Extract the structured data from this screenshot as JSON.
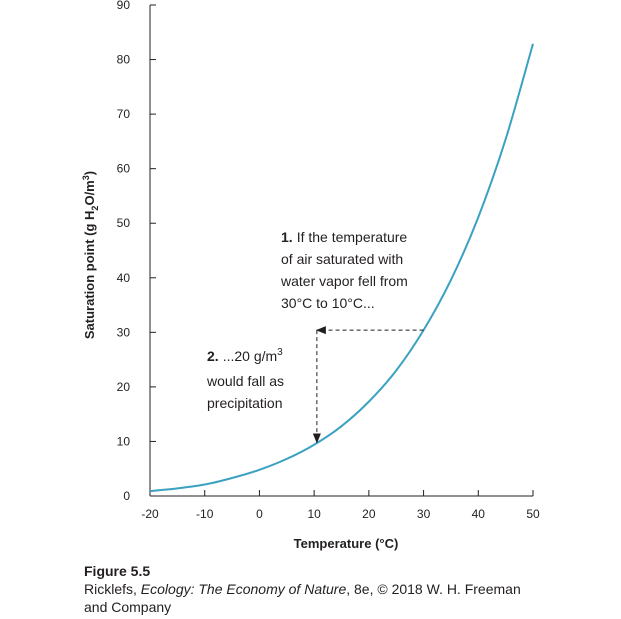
{
  "chart_data": {
    "type": "line",
    "xlabel": "Temperature (°C)",
    "ylabel_parts": [
      "Saturation point (g H",
      "2",
      "O/m",
      "3",
      ")"
    ],
    "xlim": [
      -20,
      50
    ],
    "ylim": [
      0,
      90
    ],
    "x_ticks": [
      -20,
      -10,
      0,
      10,
      20,
      30,
      40,
      50
    ],
    "y_ticks": [
      0,
      10,
      20,
      30,
      40,
      50,
      60,
      70,
      80,
      90
    ],
    "grid": false,
    "line_color": "#3aa1c1",
    "series": [
      {
        "x": [
          -20,
          -15,
          -10,
          -5,
          0,
          5,
          10,
          15,
          20,
          25,
          30,
          35,
          40,
          45,
          50
        ],
        "y": [
          0.9,
          1.4,
          2.1,
          3.3,
          4.8,
          6.8,
          9.4,
          12.8,
          17.3,
          23.0,
          30.4,
          39.6,
          51.1,
          65.4,
          82.9
        ]
      }
    ],
    "annotations": [
      {
        "number": "1.",
        "lines": [
          "If the temperature",
          "of air saturated with",
          "water vapor fell from",
          "30°C to 10°C..."
        ]
      },
      {
        "number": "2.",
        "lines": [
          "...20 g/m",
          "would fall as",
          "precipitation"
        ],
        "superscript": "3"
      }
    ],
    "arrows": [
      {
        "from": [
          30,
          30.4
        ],
        "to": [
          10.5,
          30.4
        ]
      },
      {
        "from": [
          10.5,
          30.4
        ],
        "to": [
          10.5,
          9.8
        ]
      }
    ]
  },
  "caption": {
    "title": "Figure 5.5",
    "author_prefix": "Ricklefs, ",
    "book_title": "Ecology: The Economy of Nature",
    "rest_line1": ", 8e, © 2018 W. H. Freeman",
    "line2": "and Company"
  }
}
